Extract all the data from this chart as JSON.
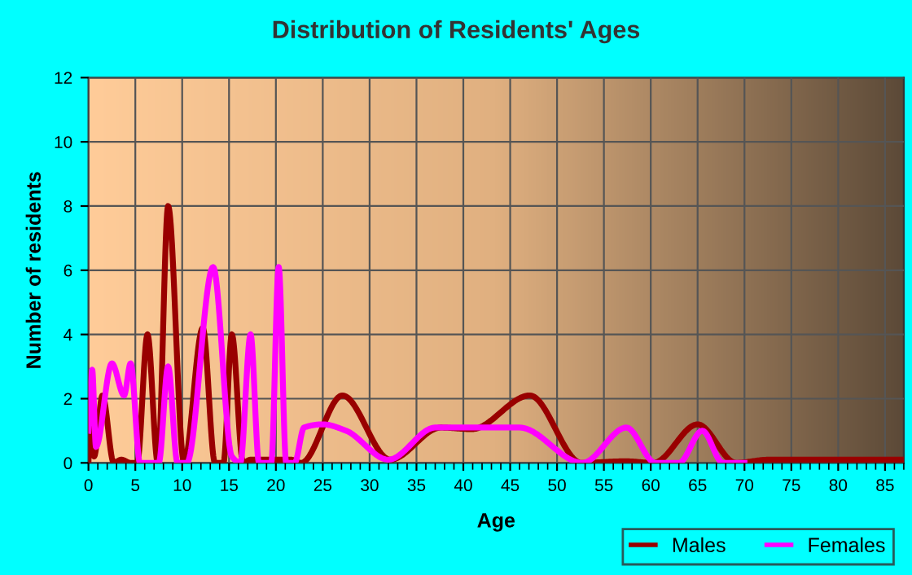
{
  "chart_data": {
    "type": "line",
    "title": "Distribution of Residents' Ages",
    "xlabel": "Age",
    "ylabel": "Number of residents",
    "xlim": [
      0,
      87
    ],
    "ylim": [
      0,
      12
    ],
    "xticks": [
      0,
      5,
      10,
      15,
      20,
      25,
      30,
      35,
      40,
      45,
      50,
      55,
      60,
      65,
      70,
      75,
      80,
      85
    ],
    "yticks": [
      0,
      2,
      4,
      6,
      8,
      10,
      12
    ],
    "grid": true,
    "legend": "bottom right",
    "marker": "none",
    "line_style": "solid",
    "series": [
      {
        "name": "Males",
        "color": "#990000",
        "x": [
          0,
          0.2,
          0.6,
          1.5,
          2.7,
          3.5,
          4.5,
          5.2,
          6.3,
          7.4,
          8.5,
          10.2,
          12.2,
          13.5,
          14.4,
          15.3,
          16.5,
          17.3,
          21.6,
          22.7,
          27.1,
          32.2,
          37.6,
          40.9,
          47.1,
          52.6,
          57.3,
          60.3,
          65,
          69.1,
          72.6,
          87
        ],
        "values": [
          0,
          2,
          0.2,
          2.1,
          0,
          0.1,
          0,
          0,
          4,
          0,
          8,
          0,
          4.2,
          0,
          0,
          4,
          0,
          0.1,
          0.1,
          0,
          2.1,
          0.1,
          1.1,
          1.05,
          2.1,
          0,
          0.05,
          0,
          1.2,
          0,
          0.1,
          0.1
        ]
      },
      {
        "name": "Females",
        "color": "#ff00ff",
        "x": [
          0,
          0.4,
          0.8,
          2.5,
          3.8,
          4.5,
          5.5,
          7.5,
          8.5,
          9.5,
          10.5,
          13.3,
          15.3,
          16.2,
          17.3,
          18.2,
          19.5,
          20.3,
          21.1,
          22,
          23,
          25,
          27.5,
          32,
          37,
          41,
          46,
          52.7,
          57.4,
          60.5,
          63,
          65.5,
          67.7,
          70
        ],
        "values": [
          1,
          2.9,
          0.5,
          3.1,
          2.1,
          3.1,
          0,
          0,
          3,
          0,
          0,
          6.1,
          0.2,
          0,
          4,
          0,
          0,
          6.1,
          0,
          0,
          1.1,
          1.2,
          1,
          0.1,
          1.1,
          1.1,
          1.1,
          0,
          1.1,
          0,
          0,
          1,
          0,
          0
        ]
      }
    ]
  }
}
